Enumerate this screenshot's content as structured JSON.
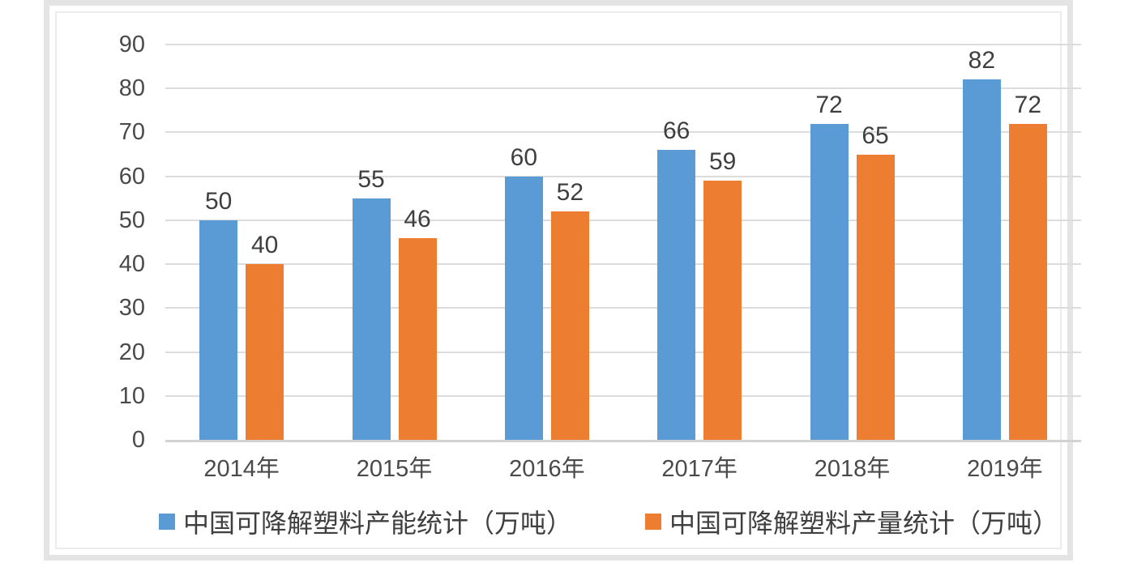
{
  "chart_data": {
    "type": "bar",
    "title": "",
    "categories": [
      "2014年",
      "2015年",
      "2016年",
      "2017年",
      "2018年",
      "2019年"
    ],
    "series": [
      {
        "name": "中国可降解塑料产能统计（万吨）",
        "color": "#5B9BD5",
        "values": [
          50,
          55,
          60,
          66,
          72,
          82
        ]
      },
      {
        "name": "中国可降解塑料产量统计（万吨）",
        "color": "#ED7D31",
        "values": [
          40,
          46,
          52,
          59,
          65,
          72
        ]
      }
    ],
    "xlabel": "",
    "ylabel": "",
    "ylim": [
      0,
      90
    ],
    "yticks": [
      0,
      10,
      20,
      30,
      40,
      50,
      60,
      70,
      80,
      90
    ],
    "grid": true,
    "data_labels": true,
    "legend_position": "bottom"
  },
  "colors": {
    "series_capacity": "#5B9BD5",
    "series_output": "#ED7D31",
    "gridline": "#dcdcdc",
    "axis_line": "#d2d2d2",
    "tick_text": "#4a4a4a",
    "value_text": "#3f3f3f",
    "frame_border": "#e4e4e4"
  }
}
